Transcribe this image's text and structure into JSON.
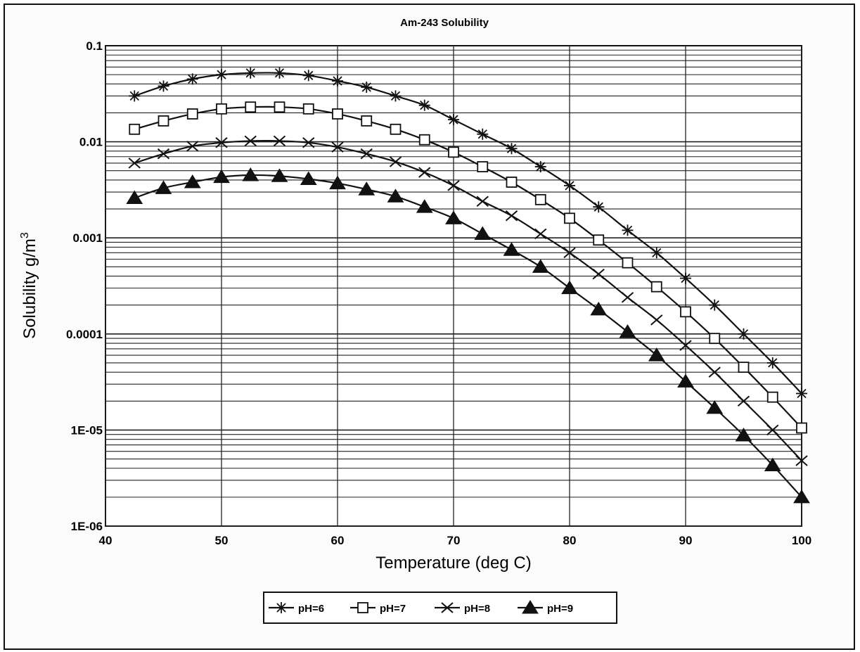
{
  "chart_data": {
    "type": "line",
    "title": "Am-243 Solubility",
    "xlabel": "Temperature (deg C)",
    "ylabel": "Solubility g/m",
    "ylabel_superscript": "3",
    "x_scale": "linear",
    "y_scale": "log",
    "xlim": [
      40,
      100
    ],
    "ylim": [
      1e-06,
      0.1
    ],
    "x_ticks": [
      "40",
      "50",
      "60",
      "70",
      "80",
      "90",
      "100"
    ],
    "y_ticks": [
      "1E-06",
      "1E-05",
      "0.0001",
      "0.001",
      "0.01",
      "0.1"
    ],
    "grid": true,
    "legend_position": "bottom-center",
    "x": [
      42.5,
      45,
      47.5,
      50,
      52.5,
      55,
      57.5,
      60,
      62.5,
      65,
      67.5,
      70,
      72.5,
      75,
      77.5,
      80,
      82.5,
      85,
      87.5,
      90,
      92.5,
      95,
      97.5,
      100
    ],
    "series": [
      {
        "name": "pH=6",
        "marker": "asterisk",
        "values": [
          0.03,
          0.038,
          0.045,
          0.05,
          0.052,
          0.052,
          0.049,
          0.043,
          0.037,
          0.03,
          0.024,
          0.017,
          0.012,
          0.0085,
          0.0055,
          0.0035,
          0.0021,
          0.0012,
          0.0007,
          0.00038,
          0.0002,
          0.0001,
          5e-05,
          2.4e-05
        ]
      },
      {
        "name": "pH=7",
        "marker": "open-square",
        "values": [
          0.0135,
          0.0165,
          0.0195,
          0.022,
          0.023,
          0.023,
          0.022,
          0.0195,
          0.0165,
          0.0135,
          0.0105,
          0.0078,
          0.0055,
          0.0038,
          0.0025,
          0.0016,
          0.00095,
          0.00055,
          0.00031,
          0.00017,
          8.98e-05,
          4.5e-05,
          2.2e-05,
          1.05e-05
        ]
      },
      {
        "name": "pH=8",
        "marker": "x-cross",
        "values": [
          0.006,
          0.0075,
          0.009,
          0.0098,
          0.0102,
          0.0102,
          0.0098,
          0.0088,
          0.0075,
          0.0062,
          0.0048,
          0.0035,
          0.0024,
          0.0017,
          0.0011,
          0.0007,
          0.00042,
          0.00024,
          0.00014,
          7.6e-05,
          4e-05,
          2e-05,
          1e-05,
          4.8e-06
        ]
      },
      {
        "name": "pH=9",
        "marker": "filled-triangle",
        "values": [
          0.0026,
          0.0033,
          0.0038,
          0.0043,
          0.0045,
          0.0044,
          0.0041,
          0.0037,
          0.0032,
          0.0027,
          0.0021,
          0.0016,
          0.0011,
          0.00075,
          0.0005,
          0.0003,
          0.00018,
          0.000105,
          6e-05,
          3.2e-05,
          1.7e-05,
          8.8e-06,
          4.3e-06,
          2e-06
        ]
      }
    ]
  },
  "colors": {
    "line": "#111111",
    "grid": "#222222",
    "plot_background": "#ffffff",
    "frame_background": "#fbfbfb"
  }
}
